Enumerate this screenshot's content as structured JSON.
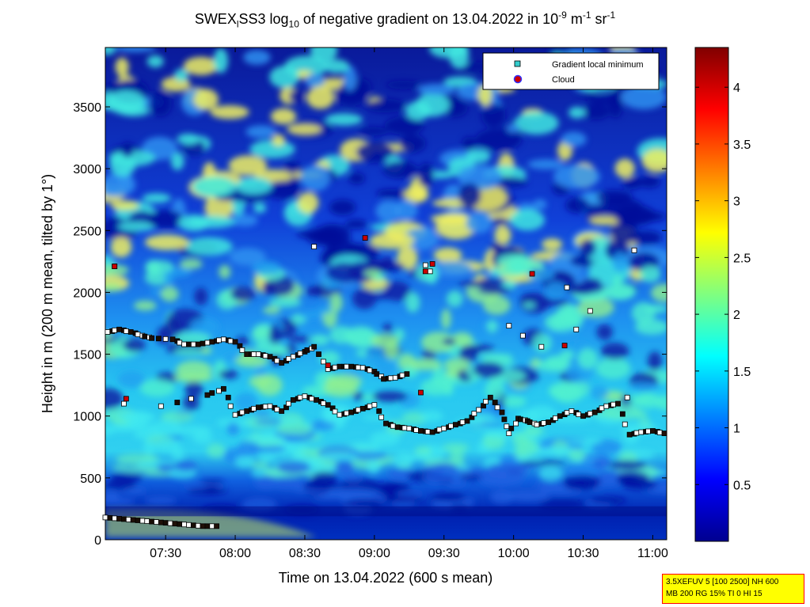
{
  "chart_data": {
    "type": "heatmap",
    "title_parts": {
      "pre": "SWEX",
      "sub1": "l",
      "mid": "SS3 log",
      "sub2": "10",
      "post": " of negative gradient on 13.04.2022 in 10",
      "sup1": "-9",
      "unit1": " m",
      "sup2": "-1",
      "unit2": " sr",
      "sup3": "-1"
    },
    "xlabel": "Time on 13.04.2022 (600 s mean)",
    "ylabel": "Height in m (200 m mean, tilted by 1°)",
    "x_range": [
      "07:04",
      "11:06"
    ],
    "xticks": [
      "07:30",
      "08:00",
      "08:30",
      "09:00",
      "09:30",
      "10:00",
      "10:30",
      "11:00"
    ],
    "ylim": [
      0,
      3980
    ],
    "yticks": [
      0,
      500,
      1000,
      1500,
      2000,
      2500,
      3000,
      3500
    ],
    "colorbar": {
      "colormap": "jet",
      "range": [
        0,
        4.35
      ],
      "ticks": [
        0.5,
        1,
        1.5,
        2,
        2.5,
        3,
        3.5,
        4
      ]
    },
    "legend": {
      "placement": "top-right",
      "entries": [
        {
          "label": "Gradient local minimum",
          "marker": "square",
          "color": "#33cccc"
        },
        {
          "label": "Cloud",
          "marker": "circle",
          "color": "#cc0000"
        }
      ]
    },
    "markers": {
      "surface_layer": [
        {
          "t": "07:04",
          "h": 180
        },
        {
          "t": "07:10",
          "h": 170
        },
        {
          "t": "07:16",
          "h": 160
        },
        {
          "t": "07:22",
          "h": 150
        },
        {
          "t": "07:28",
          "h": 140
        },
        {
          "t": "07:34",
          "h": 130
        },
        {
          "t": "07:40",
          "h": 120
        },
        {
          "t": "07:46",
          "h": 110
        },
        {
          "t": "07:52",
          "h": 110
        }
      ],
      "track_high": [
        {
          "t": "07:05",
          "h": 1680
        },
        {
          "t": "07:10",
          "h": 1700
        },
        {
          "t": "07:15",
          "h": 1680
        },
        {
          "t": "07:20",
          "h": 1650
        },
        {
          "t": "07:24",
          "h": 1630
        },
        {
          "t": "07:33",
          "h": 1620
        },
        {
          "t": "07:38",
          "h": 1580
        },
        {
          "t": "07:44",
          "h": 1580
        },
        {
          "t": "07:50",
          "h": 1600
        },
        {
          "t": "07:55",
          "h": 1620
        },
        {
          "t": "08:00",
          "h": 1600
        },
        {
          "t": "08:05",
          "h": 1500
        },
        {
          "t": "08:10",
          "h": 1500
        },
        {
          "t": "08:15",
          "h": 1480
        },
        {
          "t": "08:20",
          "h": 1430
        },
        {
          "t": "08:25",
          "h": 1480
        },
        {
          "t": "08:30",
          "h": 1520
        },
        {
          "t": "08:34",
          "h": 1560
        },
        {
          "t": "08:40",
          "h": 1380
        },
        {
          "t": "08:45",
          "h": 1400
        },
        {
          "t": "08:50",
          "h": 1400
        },
        {
          "t": "08:55",
          "h": 1390
        },
        {
          "t": "09:00",
          "h": 1360
        },
        {
          "t": "09:04",
          "h": 1300
        },
        {
          "t": "09:09",
          "h": 1310
        },
        {
          "t": "09:14",
          "h": 1340
        }
      ],
      "track_mid": [
        {
          "t": "07:28",
          "h": 1080
        },
        {
          "t": "07:48",
          "h": 1170
        },
        {
          "t": "07:55",
          "h": 1220
        },
        {
          "t": "08:00",
          "h": 1010
        },
        {
          "t": "08:05",
          "h": 1040
        },
        {
          "t": "08:10",
          "h": 1070
        },
        {
          "t": "08:15",
          "h": 1080
        },
        {
          "t": "08:20",
          "h": 1040
        },
        {
          "t": "08:25",
          "h": 1130
        },
        {
          "t": "08:30",
          "h": 1160
        },
        {
          "t": "08:35",
          "h": 1130
        },
        {
          "t": "08:40",
          "h": 1090
        },
        {
          "t": "08:45",
          "h": 1010
        },
        {
          "t": "08:50",
          "h": 1030
        },
        {
          "t": "08:55",
          "h": 1060
        },
        {
          "t": "09:00",
          "h": 1090
        },
        {
          "t": "09:05",
          "h": 940
        },
        {
          "t": "09:10",
          "h": 910
        },
        {
          "t": "09:15",
          "h": 900
        },
        {
          "t": "09:20",
          "h": 880
        },
        {
          "t": "09:25",
          "h": 870
        },
        {
          "t": "09:30",
          "h": 900
        },
        {
          "t": "09:35",
          "h": 930
        },
        {
          "t": "09:40",
          "h": 960
        },
        {
          "t": "09:45",
          "h": 1050
        },
        {
          "t": "09:50",
          "h": 1150
        },
        {
          "t": "09:55",
          "h": 1030
        },
        {
          "t": "09:58",
          "h": 860
        },
        {
          "t": "10:02",
          "h": 980
        },
        {
          "t": "10:06",
          "h": 960
        },
        {
          "t": "10:10",
          "h": 930
        },
        {
          "t": "10:15",
          "h": 950
        },
        {
          "t": "10:20",
          "h": 1000
        },
        {
          "t": "10:25",
          "h": 1040
        },
        {
          "t": "10:30",
          "h": 1000
        },
        {
          "t": "10:35",
          "h": 1030
        },
        {
          "t": "10:40",
          "h": 1080
        },
        {
          "t": "10:45",
          "h": 1100
        },
        {
          "t": "10:50",
          "h": 850
        },
        {
          "t": "10:55",
          "h": 870
        },
        {
          "t": "11:00",
          "h": 880
        },
        {
          "t": "11:05",
          "h": 860
        }
      ],
      "scattered": [
        {
          "t": "07:08",
          "h": 2210
        },
        {
          "t": "07:12",
          "h": 1100
        },
        {
          "t": "08:34",
          "h": 2370
        },
        {
          "t": "09:22",
          "h": 2220
        },
        {
          "t": "09:24",
          "h": 2170
        },
        {
          "t": "09:58",
          "h": 1730
        },
        {
          "t": "10:04",
          "h": 1650
        },
        {
          "t": "10:12",
          "h": 1560
        },
        {
          "t": "10:23",
          "h": 2040
        },
        {
          "t": "10:27",
          "h": 1700
        },
        {
          "t": "10:33",
          "h": 1850
        },
        {
          "t": "10:52",
          "h": 2340
        },
        {
          "t": "10:49",
          "h": 1150
        }
      ],
      "clouds": [
        {
          "t": "07:08",
          "h": 2210
        },
        {
          "t": "07:13",
          "h": 1140
        },
        {
          "t": "08:40",
          "h": 1410
        },
        {
          "t": "08:56",
          "h": 2440
        },
        {
          "t": "09:22",
          "h": 2170
        },
        {
          "t": "09:25",
          "h": 2230
        },
        {
          "t": "09:20",
          "h": 1190
        },
        {
          "t": "10:08",
          "h": 2150
        },
        {
          "t": "10:22",
          "h": 1570
        }
      ]
    }
  },
  "footnote": {
    "line1": "3.5XEFUV 5 [100 2500] NH 600",
    "line2": "MB 200 RG 15% TI 0 HI 15"
  }
}
